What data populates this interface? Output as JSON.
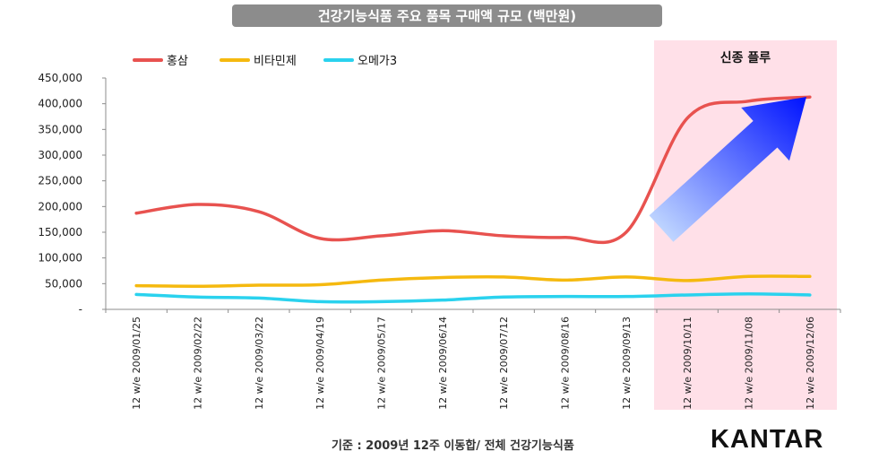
{
  "title": "건강기능식품 주요 품목 구매액 규모 (백만원)",
  "highlight_label": "신종 플루",
  "footer": "기준 : 2009년 12주 이동합/ 전체 건강기능식품",
  "brand": "KANTAR",
  "colors": {
    "title_bg": "#8c8c8c",
    "highlight_bg": "#ffe0e8",
    "series": [
      "#e8524f",
      "#f5b90f",
      "#2ad2ee"
    ],
    "arrow_start": "#cfe6ff",
    "arrow_end": "#0012ff"
  },
  "chart_data": {
    "type": "line",
    "categories": [
      "12 w/e 2009/01/25",
      "12 w/e 2009/02/22",
      "12 w/e 2009/03/22",
      "12 w/e 2009/04/19",
      "12 w/e 2009/05/17",
      "12 w/e 2009/06/14",
      "12 w/e 2009/07/12",
      "12 w/e 2009/08/16",
      "12 w/e 2009/09/13",
      "12 w/e 2009/10/11",
      "12 w/e 2009/11/08",
      "12 w/e 2009/12/06"
    ],
    "series": [
      {
        "name": "홍삼",
        "values": [
          187000,
          204000,
          190000,
          138000,
          143000,
          153000,
          143000,
          140000,
          150000,
          372000,
          405000,
          413000
        ]
      },
      {
        "name": "비타민제",
        "values": [
          46000,
          45000,
          47000,
          48000,
          57000,
          62000,
          63000,
          57000,
          63000,
          56000,
          64000,
          64000
        ]
      },
      {
        "name": "오메가3",
        "values": [
          29000,
          24000,
          22000,
          15000,
          15000,
          18000,
          24000,
          25000,
          25000,
          28000,
          30000,
          28000
        ]
      }
    ],
    "y_ticks": [
      "-",
      "50,000",
      "100,000",
      "150,000",
      "200,000",
      "250,000",
      "300,000",
      "350,000",
      "400,000",
      "450,000"
    ],
    "ylim": [
      0,
      450000
    ],
    "highlight_range": [
      "12 w/e 2009/10/11",
      "12 w/e 2009/12/06"
    ],
    "legend_position": "top-left",
    "grid": false
  }
}
